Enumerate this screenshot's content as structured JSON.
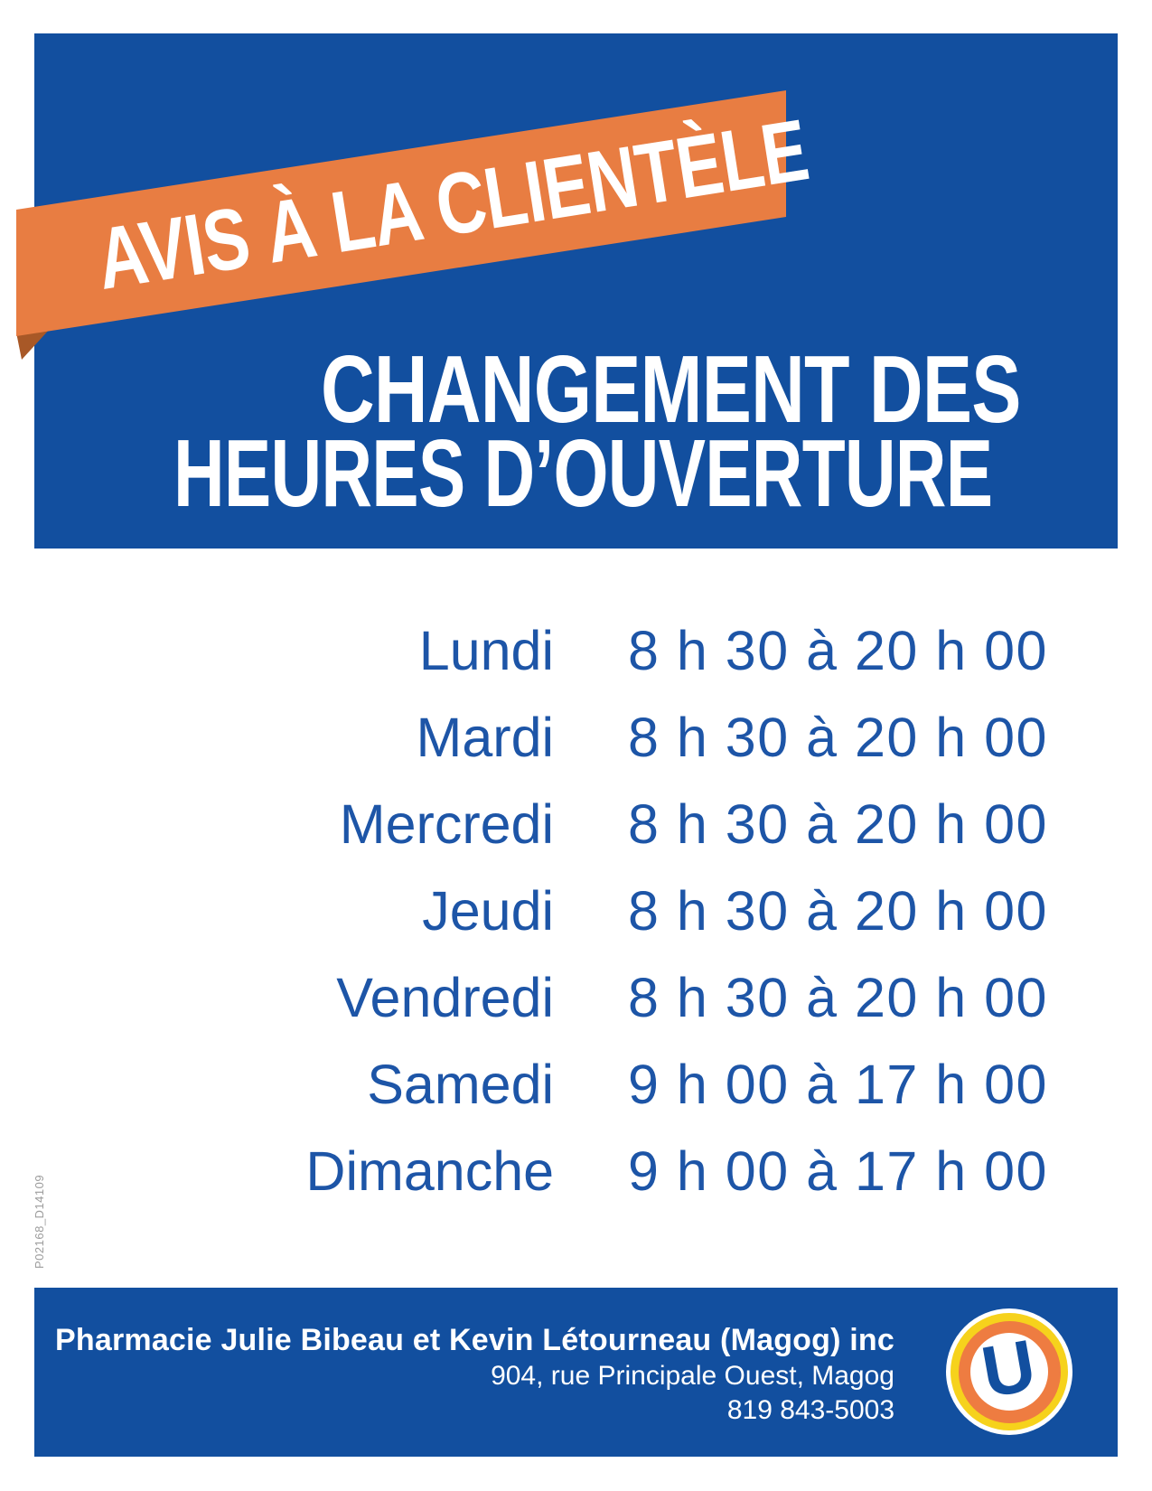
{
  "banner": {
    "label": "AVIS À LA CLIENTÈLE"
  },
  "title": {
    "line1": "CHANGEMENT DES",
    "line2": "HEURES D’OUVERTURE"
  },
  "schedule": {
    "rows": [
      {
        "day": "Lundi",
        "hours": "8 h 30 à 20 h 00"
      },
      {
        "day": "Mardi",
        "hours": "8 h 30 à 20 h 00"
      },
      {
        "day": "Mercredi",
        "hours": "8 h 30 à 20 h 00"
      },
      {
        "day": "Jeudi",
        "hours": "8 h 30 à 20 h 00"
      },
      {
        "day": "Vendredi",
        "hours": "8 h 30 à 20 h 00"
      },
      {
        "day": "Samedi",
        "hours": "9 h 00 à 17 h 00"
      },
      {
        "day": "Dimanche",
        "hours": "9 h 00 à 17 h 00"
      }
    ]
  },
  "footer": {
    "name": "Pharmacie Julie Bibeau et Kevin Létourneau (Magog) inc",
    "address": "904, rue Principale Ouest, Magog",
    "phone": "819 843-5003",
    "logo_letter": "U"
  },
  "print_code": "P02168_D14109",
  "colors": {
    "brand_blue": "#124f9f",
    "text_blue": "#1d55a7",
    "ribbon_orange": "#e87d42",
    "ribbon_fold": "#a85827",
    "logo_orange": "#ee7c41",
    "logo_yellow": "#f6d21c",
    "code_gray": "#9c9c9c"
  }
}
